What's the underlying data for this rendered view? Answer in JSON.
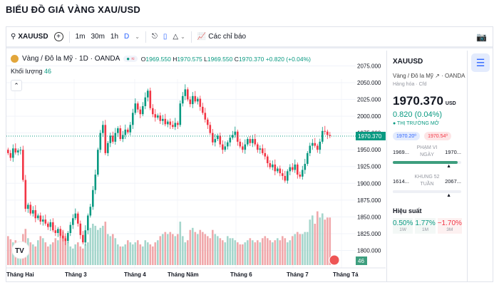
{
  "page_title": "BIỂU ĐỒ GIÁ VÀNG XAU/USD",
  "toolbar": {
    "symbol": "XAUUSD",
    "intervals": [
      "1m",
      "30m",
      "1h",
      "D"
    ],
    "active_interval": "D",
    "indicators_label": "Các chỉ báo"
  },
  "legend": {
    "name": "Vàng / Đô la Mỹ · 1D · OANDA",
    "o_label": "O",
    "o": "1969.550",
    "h_label": "H",
    "h": "1970.575",
    "l_label": "L",
    "l": "1969.550",
    "c_label": "C",
    "c": "1970.370",
    "change": "+0.820 (+0.04%)",
    "volume_label": "Khối lượng",
    "volume": "46"
  },
  "panel": {
    "symbol": "XAUUSD",
    "name": "Vàng / Đô la Mỹ",
    "exchange": "· OANDA",
    "category": "Hàng hóa · Cfd",
    "price": "1970.370",
    "currency": "USD",
    "change": "0.820 (0.04%)",
    "market_status": "● THỊ TRƯỜNG MỞ",
    "bid": "1970.20⁰",
    "ask": "1970.54⁰",
    "day_range": {
      "low": "1969...",
      "label": "PHẠM VI NGÀY",
      "high": "1970...",
      "fill_fraction": 0.95
    },
    "week52_range": {
      "low": "1614...",
      "label": "KHUNG 52 TUẦN",
      "high": "2067...",
      "fill_fraction": 0.94
    },
    "performance_label": "Hiệu suất",
    "performance": [
      {
        "value": "0.50%",
        "period": "1W",
        "color": "#089981"
      },
      {
        "value": "1.77%",
        "period": "1M",
        "color": "#089981"
      },
      {
        "value": "−1.70%",
        "period": "3M",
        "color": "#f23645"
      }
    ]
  },
  "colors": {
    "up": "#089981",
    "down": "#f23645",
    "vol_up": "#a5d6cc",
    "vol_down": "#f0a8ab",
    "accent": "#2962ff"
  },
  "chart_data": {
    "type": "candlestick",
    "y_ticks": [
      "2075.000",
      "2050.000",
      "2025.000",
      "2000.000",
      "1975.000",
      "1950.000",
      "1925.000",
      "1900.000",
      "1875.000",
      "1850.000",
      "1825.000",
      "1800.000"
    ],
    "x_ticks": [
      "Tháng Hai",
      "Tháng 3",
      "Tháng 4",
      "Tháng Năm",
      "Tháng 6",
      "Tháng 7",
      "Tháng Tá"
    ],
    "ylim": [
      1790,
      2085
    ],
    "last_price_label": "1970.370",
    "last_volume_label": "46",
    "close": [
      1945,
      1938,
      1952,
      1946,
      1949,
      1950,
      1905,
      1862,
      1868,
      1855,
      1860,
      1848,
      1852,
      1843,
      1846,
      1840,
      1835,
      1842,
      1830,
      1826,
      1832,
      1822,
      1818,
      1814,
      1826,
      1838,
      1848,
      1855,
      1840,
      1823,
      1812,
      1830,
      1852,
      1865,
      1890,
      1913,
      1950,
      1975,
      1987,
      1945,
      1960,
      1971,
      1962,
      1975,
      1982,
      1966,
      1972,
      1980,
      1976,
      1987,
      2005,
      2019,
      2010,
      2003,
      2015,
      2028,
      2038,
      2012,
      2003,
      1998,
      2001,
      1993,
      1996,
      1988,
      1992,
      1987,
      1984,
      1990,
      1987,
      2019,
      2030,
      2040,
      2025,
      2018,
      2030,
      2022,
      2026,
      2014,
      2005,
      1995,
      1987,
      1975,
      1961,
      1966,
      1971,
      1958,
      1950,
      1955,
      1961,
      1968,
      1972,
      1977,
      1962,
      1955,
      1950,
      1958,
      1966,
      1960,
      1966,
      1958,
      1950,
      1952,
      1945,
      1940,
      1930,
      1924,
      1928,
      1918,
      1922,
      1915,
      1911,
      1904,
      1918,
      1924,
      1920,
      1928,
      1913,
      1910,
      1920,
      1929,
      1945,
      1956,
      1960,
      1956,
      1950,
      1962,
      1978,
      1977,
      1972,
      1970.37
    ],
    "volume": [
      28,
      25,
      22,
      24,
      20,
      18,
      30,
      35,
      26,
      22,
      20,
      18,
      24,
      28,
      26,
      22,
      18,
      20,
      22,
      26,
      24,
      30,
      34,
      28,
      22,
      18,
      16,
      20,
      22,
      18,
      16,
      20,
      22,
      36,
      40,
      38,
      34,
      36,
      38,
      42,
      30,
      28,
      30,
      26,
      20,
      18,
      18,
      20,
      24,
      22,
      20,
      22,
      24,
      20,
      18,
      24,
      22,
      20,
      18,
      22,
      24,
      28,
      30,
      32,
      30,
      32,
      30,
      28,
      30,
      42,
      28,
      22,
      24,
      34,
      36,
      32,
      30,
      34,
      32,
      30,
      28,
      26,
      34,
      30,
      28,
      26,
      24,
      22,
      28,
      26,
      26,
      24,
      22,
      20,
      20,
      22,
      24,
      26,
      24,
      22,
      24,
      22,
      26,
      28,
      26,
      24,
      22,
      24,
      26,
      24,
      28,
      26,
      22,
      24,
      28,
      30,
      32,
      30,
      30,
      32,
      32,
      44,
      48,
      40,
      52,
      46,
      50,
      44,
      46,
      46
    ]
  }
}
